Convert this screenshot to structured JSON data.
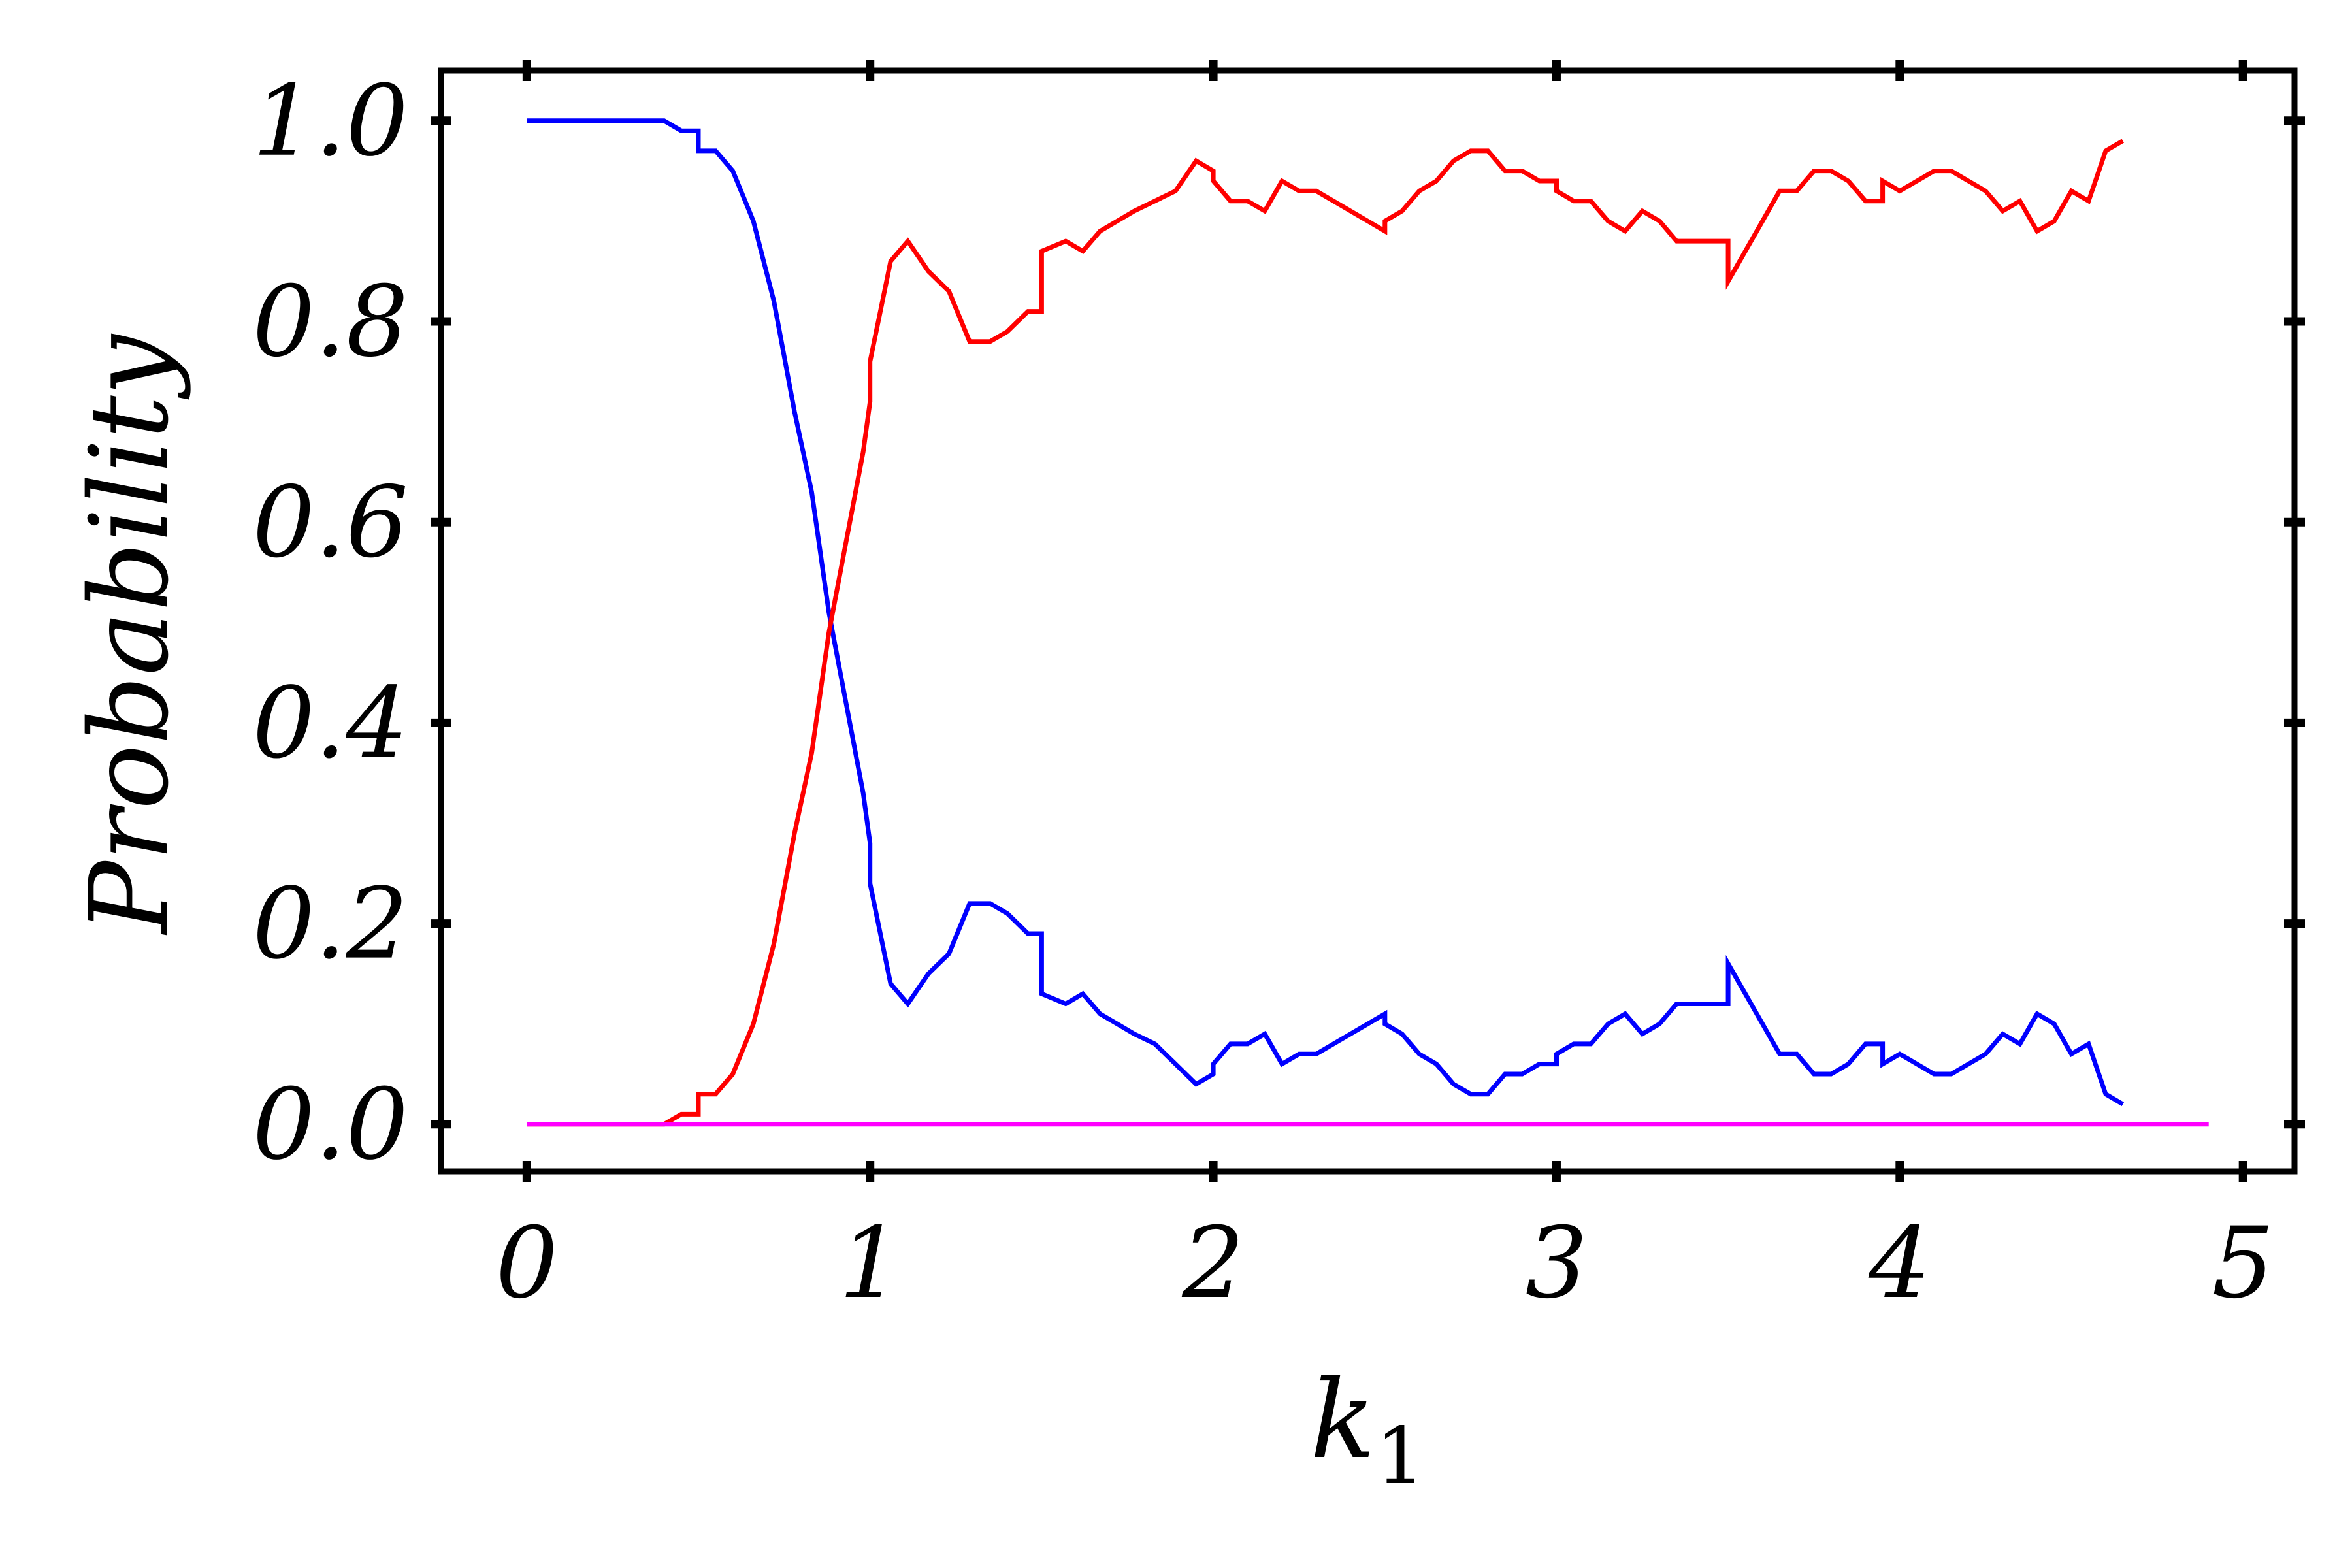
{
  "chart_data": {
    "type": "line",
    "title": "",
    "xlabel": "k",
    "xlabel_subscript": "1",
    "ylabel": "Probability",
    "xlim": [
      -0.25,
      5.15
    ],
    "ylim": [
      -0.047,
      1.05
    ],
    "x_ticks": [
      0,
      1,
      2,
      3,
      4,
      5
    ],
    "x_tick_labels": [
      "0",
      "1",
      "2",
      "3",
      "4",
      "5"
    ],
    "y_ticks": [
      0.0,
      0.2,
      0.4,
      0.6,
      0.8,
      1.0
    ],
    "y_tick_labels": [
      "0.0",
      "0.2",
      "0.4",
      "0.6",
      "0.8",
      "1.0"
    ],
    "grid": false,
    "legend": "none",
    "series": [
      {
        "color": "#0000ff",
        "points": [
          [
            0,
            1.0
          ],
          [
            0.05,
            1.0
          ],
          [
            0.1,
            1.0
          ],
          [
            0.15,
            1.0
          ],
          [
            0.2,
            1.0
          ],
          [
            0.25,
            1.0
          ],
          [
            0.3,
            1.0
          ],
          [
            0.35,
            1.0
          ],
          [
            0.4,
            1.0
          ],
          [
            0.45,
            0.99
          ],
          [
            0.5,
            0.99
          ],
          [
            0.5,
            0.97
          ],
          [
            0.55,
            0.97
          ],
          [
            0.6,
            0.95
          ],
          [
            0.66,
            0.9
          ],
          [
            0.72,
            0.82
          ],
          [
            0.78,
            0.71
          ],
          [
            0.83,
            0.63
          ],
          [
            0.88,
            0.51
          ],
          [
            0.93,
            0.42
          ],
          [
            0.98,
            0.33
          ],
          [
            1.0,
            0.28
          ],
          [
            1.0,
            0.24
          ],
          [
            1.06,
            0.14
          ],
          [
            1.11,
            0.12
          ],
          [
            1.17,
            0.15
          ],
          [
            1.23,
            0.17
          ],
          [
            1.29,
            0.22
          ],
          [
            1.35,
            0.22
          ],
          [
            1.4,
            0.21
          ],
          [
            1.46,
            0.19
          ],
          [
            1.5,
            0.19
          ],
          [
            1.5,
            0.13
          ],
          [
            1.57,
            0.12
          ],
          [
            1.62,
            0.13
          ],
          [
            1.67,
            0.11
          ],
          [
            1.72,
            0.1
          ],
          [
            1.77,
            0.09
          ],
          [
            1.83,
            0.08
          ],
          [
            1.89,
            0.06
          ],
          [
            1.95,
            0.04
          ],
          [
            2.0,
            0.05
          ],
          [
            2.0,
            0.06
          ],
          [
            2.05,
            0.08
          ],
          [
            2.1,
            0.08
          ],
          [
            2.15,
            0.09
          ],
          [
            2.2,
            0.06
          ],
          [
            2.25,
            0.07
          ],
          [
            2.3,
            0.07
          ],
          [
            2.35,
            0.08
          ],
          [
            2.45,
            0.1
          ],
          [
            2.5,
            0.11
          ],
          [
            2.5,
            0.1
          ],
          [
            2.55,
            0.09
          ],
          [
            2.6,
            0.07
          ],
          [
            2.65,
            0.06
          ],
          [
            2.7,
            0.04
          ],
          [
            2.75,
            0.03
          ],
          [
            2.8,
            0.03
          ],
          [
            2.85,
            0.05
          ],
          [
            2.9,
            0.05
          ],
          [
            2.95,
            0.06
          ],
          [
            3.0,
            0.06
          ],
          [
            3.0,
            0.07
          ],
          [
            3.05,
            0.08
          ],
          [
            3.1,
            0.08
          ],
          [
            3.15,
            0.1
          ],
          [
            3.2,
            0.11
          ],
          [
            3.25,
            0.09
          ],
          [
            3.3,
            0.1
          ],
          [
            3.35,
            0.12
          ],
          [
            3.4,
            0.12
          ],
          [
            3.5,
            0.12
          ],
          [
            3.5,
            0.16
          ],
          [
            3.55,
            0.13
          ],
          [
            3.6,
            0.1
          ],
          [
            3.65,
            0.07
          ],
          [
            3.7,
            0.07
          ],
          [
            3.75,
            0.05
          ],
          [
            3.8,
            0.05
          ],
          [
            3.85,
            0.06
          ],
          [
            3.9,
            0.08
          ],
          [
            3.95,
            0.08
          ],
          [
            3.95,
            0.06
          ],
          [
            4.0,
            0.07
          ],
          [
            4.05,
            0.06
          ],
          [
            4.1,
            0.05
          ],
          [
            4.15,
            0.05
          ],
          [
            4.2,
            0.06
          ],
          [
            4.25,
            0.07
          ],
          [
            4.3,
            0.09
          ],
          [
            4.35,
            0.08
          ],
          [
            4.4,
            0.11
          ],
          [
            4.45,
            0.1
          ],
          [
            4.5,
            0.07
          ],
          [
            4.55,
            0.08
          ],
          [
            4.6,
            0.03
          ],
          [
            4.65,
            0.02
          ]
        ]
      },
      {
        "color": "#ff0000",
        "points": [
          [
            0,
            0.0
          ],
          [
            0.1,
            0.0
          ],
          [
            0.2,
            0.0
          ],
          [
            0.3,
            0.0
          ],
          [
            0.4,
            0.0
          ],
          [
            0.45,
            0.01
          ],
          [
            0.5,
            0.01
          ],
          [
            0.5,
            0.03
          ],
          [
            0.55,
            0.03
          ],
          [
            0.6,
            0.05
          ],
          [
            0.66,
            0.1
          ],
          [
            0.72,
            0.18
          ],
          [
            0.78,
            0.29
          ],
          [
            0.83,
            0.37
          ],
          [
            0.88,
            0.49
          ],
          [
            0.93,
            0.58
          ],
          [
            0.98,
            0.67
          ],
          [
            1.0,
            0.72
          ],
          [
            1.0,
            0.76
          ],
          [
            1.06,
            0.86
          ],
          [
            1.11,
            0.88
          ],
          [
            1.17,
            0.85
          ],
          [
            1.23,
            0.83
          ],
          [
            1.29,
            0.78
          ],
          [
            1.35,
            0.78
          ],
          [
            1.4,
            0.79
          ],
          [
            1.46,
            0.81
          ],
          [
            1.5,
            0.81
          ],
          [
            1.5,
            0.87
          ],
          [
            1.57,
            0.88
          ],
          [
            1.62,
            0.87
          ],
          [
            1.67,
            0.89
          ],
          [
            1.77,
            0.91
          ],
          [
            1.89,
            0.93
          ],
          [
            1.95,
            0.96
          ],
          [
            2.0,
            0.95
          ],
          [
            2.0,
            0.94
          ],
          [
            2.05,
            0.92
          ],
          [
            2.1,
            0.92
          ],
          [
            2.15,
            0.91
          ],
          [
            2.2,
            0.94
          ],
          [
            2.25,
            0.93
          ],
          [
            2.3,
            0.93
          ],
          [
            2.35,
            0.92
          ],
          [
            2.45,
            0.9
          ],
          [
            2.5,
            0.89
          ],
          [
            2.5,
            0.9
          ],
          [
            2.55,
            0.91
          ],
          [
            2.6,
            0.93
          ],
          [
            2.65,
            0.94
          ],
          [
            2.7,
            0.96
          ],
          [
            2.75,
            0.97
          ],
          [
            2.8,
            0.97
          ],
          [
            2.85,
            0.95
          ],
          [
            2.9,
            0.95
          ],
          [
            2.95,
            0.94
          ],
          [
            3.0,
            0.94
          ],
          [
            3.0,
            0.93
          ],
          [
            3.05,
            0.92
          ],
          [
            3.1,
            0.92
          ],
          [
            3.15,
            0.9
          ],
          [
            3.2,
            0.89
          ],
          [
            3.25,
            0.91
          ],
          [
            3.3,
            0.9
          ],
          [
            3.35,
            0.88
          ],
          [
            3.4,
            0.88
          ],
          [
            3.5,
            0.88
          ],
          [
            3.5,
            0.84
          ],
          [
            3.55,
            0.87
          ],
          [
            3.6,
            0.9
          ],
          [
            3.65,
            0.93
          ],
          [
            3.7,
            0.93
          ],
          [
            3.75,
            0.95
          ],
          [
            3.8,
            0.95
          ],
          [
            3.85,
            0.94
          ],
          [
            3.9,
            0.92
          ],
          [
            3.95,
            0.92
          ],
          [
            3.95,
            0.94
          ],
          [
            4.0,
            0.93
          ],
          [
            4.05,
            0.94
          ],
          [
            4.1,
            0.95
          ],
          [
            4.15,
            0.95
          ],
          [
            4.2,
            0.94
          ],
          [
            4.25,
            0.93
          ],
          [
            4.3,
            0.91
          ],
          [
            4.35,
            0.92
          ],
          [
            4.4,
            0.89
          ],
          [
            4.45,
            0.9
          ],
          [
            4.5,
            0.93
          ],
          [
            4.55,
            0.92
          ],
          [
            4.6,
            0.97
          ],
          [
            4.65,
            0.98
          ]
        ]
      },
      {
        "color": "#ff00ff",
        "points": [
          [
            0,
            0.0
          ],
          [
            4.9,
            0.0
          ]
        ]
      }
    ]
  }
}
